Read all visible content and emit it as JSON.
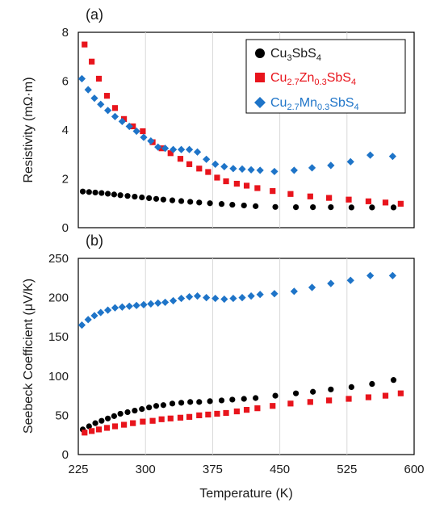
{
  "chart_data": [
    {
      "panel_label": "(a)",
      "type": "scatter",
      "xlabel": "",
      "ylabel": "Resistivity (mΩ·m)",
      "xlim": [
        225,
        600
      ],
      "ylim": [
        0,
        8
      ],
      "xticks": [
        "225",
        "300",
        "375",
        "450",
        "525",
        "600"
      ],
      "yticks": [
        "0",
        "2",
        "4",
        "6",
        "8"
      ],
      "grid": "vertical",
      "legend": "top-right",
      "legend_entries": [
        {
          "base": "Cu",
          "sub1": "3",
          "mid": "SbS",
          "sub2": "4",
          "tail": "",
          "tail_sub": ""
        },
        {
          "base": "Cu",
          "sub1": "2.7",
          "mid": "Zn",
          "sub2": "0.3",
          "tail": "SbS",
          "tail_sub": "4"
        },
        {
          "base": "Cu",
          "sub1": "2.7",
          "mid": "Mn",
          "sub2": "0.3",
          "tail": "SbS",
          "tail_sub": "4"
        }
      ],
      "series": [
        {
          "name": "Cu3SbS4",
          "color": "#000000",
          "marker": "circle",
          "x": [
            230,
            237,
            244,
            251,
            258,
            265,
            272,
            280,
            288,
            296,
            304,
            312,
            320,
            330,
            340,
            350,
            360,
            372,
            385,
            397,
            410,
            423,
            445,
            468,
            487,
            507,
            530,
            553,
            577
          ],
          "y": [
            1.48,
            1.46,
            1.44,
            1.42,
            1.39,
            1.36,
            1.33,
            1.3,
            1.27,
            1.24,
            1.21,
            1.18,
            1.15,
            1.12,
            1.09,
            1.06,
            1.03,
            1.0,
            0.97,
            0.94,
            0.91,
            0.88,
            0.85,
            0.84,
            0.84,
            0.84,
            0.83,
            0.83,
            0.83
          ]
        },
        {
          "name": "Cu2.7Zn0.3SbS4",
          "color": "#e8141c",
          "marker": "square",
          "x": [
            232,
            240,
            248,
            257,
            266,
            276,
            286,
            297,
            308,
            318,
            328,
            339,
            349,
            360,
            370,
            380,
            390,
            402,
            413,
            425,
            442,
            462,
            484,
            505,
            527,
            549,
            568,
            585
          ],
          "y": [
            7.5,
            6.8,
            6.1,
            5.4,
            4.9,
            4.45,
            4.15,
            3.95,
            3.5,
            3.25,
            3.05,
            2.82,
            2.6,
            2.42,
            2.28,
            2.05,
            1.9,
            1.8,
            1.72,
            1.62,
            1.5,
            1.38,
            1.28,
            1.22,
            1.15,
            1.08,
            1.03,
            0.98
          ]
        },
        {
          "name": "Cu2.7Mn0.3SbS4",
          "color": "#1e74c8",
          "marker": "diamond",
          "x": [
            229,
            236,
            243,
            250,
            258,
            266,
            274,
            282,
            290,
            298,
            306,
            314,
            322,
            331,
            340,
            349,
            358,
            368,
            378,
            388,
            398,
            408,
            418,
            428,
            444,
            466,
            486,
            507,
            529,
            551,
            576
          ],
          "y": [
            6.1,
            5.65,
            5.3,
            5.05,
            4.8,
            4.55,
            4.35,
            4.15,
            3.95,
            3.7,
            3.55,
            3.3,
            3.25,
            3.2,
            3.2,
            3.2,
            3.1,
            2.8,
            2.6,
            2.5,
            2.42,
            2.4,
            2.37,
            2.35,
            2.3,
            2.35,
            2.45,
            2.55,
            2.7,
            2.97,
            2.92
          ]
        }
      ]
    },
    {
      "panel_label": "(b)",
      "type": "scatter",
      "xlabel": "Temperature (K)",
      "ylabel": "Seebeck Coefficient (μV/K)",
      "xlim": [
        225,
        600
      ],
      "ylim": [
        0,
        250
      ],
      "xticks": [
        "225",
        "300",
        "375",
        "450",
        "525",
        "600"
      ],
      "yticks": [
        "0",
        "50",
        "100",
        "150",
        "200",
        "250"
      ],
      "grid": "vertical",
      "series": [
        {
          "name": "Cu3SbS4",
          "color": "#000000",
          "marker": "circle",
          "x": [
            230,
            237,
            244,
            251,
            258,
            265,
            272,
            280,
            288,
            296,
            304,
            312,
            320,
            330,
            340,
            350,
            360,
            372,
            385,
            397,
            410,
            423,
            445,
            468,
            487,
            507,
            530,
            553,
            577
          ],
          "y": [
            32,
            36,
            40,
            43,
            46,
            49,
            52,
            54,
            56,
            58,
            60,
            62,
            63,
            65,
            66,
            67,
            67,
            68,
            69,
            70,
            71,
            72,
            75,
            78,
            80,
            83,
            86,
            90,
            95
          ]
        },
        {
          "name": "Cu2.7Zn0.3SbS4",
          "color": "#e8141c",
          "marker": "square",
          "x": [
            232,
            240,
            248,
            257,
            266,
            276,
            286,
            297,
            308,
            318,
            328,
            339,
            349,
            360,
            370,
            380,
            390,
            402,
            413,
            425,
            442,
            462,
            484,
            505,
            527,
            549,
            568,
            585
          ],
          "y": [
            28,
            30,
            32,
            34,
            36,
            38,
            40,
            42,
            43,
            45,
            46,
            47,
            48,
            50,
            51,
            52,
            53,
            55,
            57,
            59,
            62,
            65,
            67,
            69,
            71,
            73,
            75,
            78
          ]
        },
        {
          "name": "Cu2.7Mn0.3SbS4",
          "color": "#1e74c8",
          "marker": "diamond",
          "x": [
            229,
            236,
            243,
            250,
            258,
            266,
            274,
            282,
            290,
            298,
            306,
            314,
            322,
            331,
            340,
            349,
            358,
            368,
            378,
            388,
            398,
            408,
            418,
            428,
            444,
            466,
            486,
            507,
            529,
            551,
            576
          ],
          "y": [
            165,
            172,
            177,
            181,
            184,
            187,
            188,
            189,
            190,
            191,
            192,
            193,
            194,
            196,
            199,
            201,
            202,
            200,
            199,
            198,
            199,
            200,
            202,
            204,
            205,
            208,
            213,
            218,
            222,
            228,
            228
          ]
        }
      ]
    }
  ]
}
